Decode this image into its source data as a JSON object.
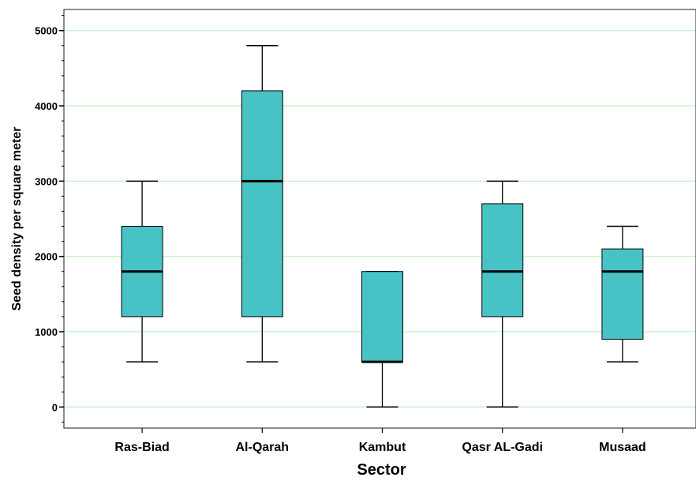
{
  "chart_data": {
    "type": "boxplot",
    "xlabel": "Sector",
    "ylabel": "Seed density per square meter",
    "ylim": [
      -280,
      5280
    ],
    "yticks": [
      0,
      1000,
      2000,
      3000,
      4000,
      5000
    ],
    "grid": "horizontal",
    "colors": {
      "box_fill": "#47C3C6",
      "grid": "#CCF2CC",
      "frame": "#404040"
    },
    "categories": [
      "Ras-Biad",
      "Al-Qarah",
      "Kambut",
      "Qasr AL-Gadi",
      "Musaad"
    ],
    "boxes": [
      {
        "category": "Ras-Biad",
        "min": 600,
        "q1": 1200,
        "median": 1800,
        "q3": 2400,
        "max": 3000
      },
      {
        "category": "Al-Qarah",
        "min": 600,
        "q1": 1200,
        "median": 3000,
        "q3": 4200,
        "max": 4800
      },
      {
        "category": "Kambut",
        "min": 0,
        "q1": 600,
        "median": 600,
        "q3": 1800,
        "max": 1800
      },
      {
        "category": "Qasr AL-Gadi",
        "min": 0,
        "q1": 1200,
        "median": 1800,
        "q3": 2700,
        "max": 3000
      },
      {
        "category": "Musaad",
        "min": 600,
        "q1": 900,
        "median": 1800,
        "q3": 2100,
        "max": 2400
      }
    ]
  }
}
